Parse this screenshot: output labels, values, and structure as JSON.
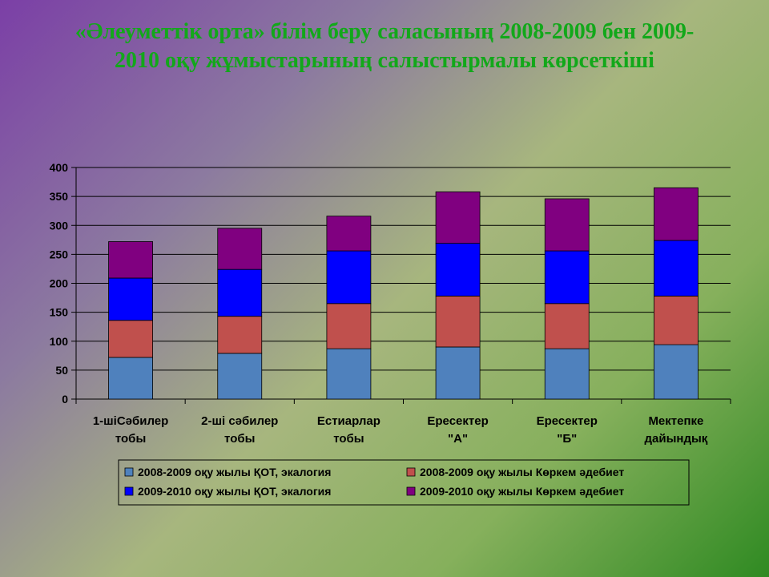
{
  "title_line1": "«Әлеуметтік орта» білім беру саласының 2008-2009 бен 2009-",
  "title_line2": "2010 оқу жұмыстарының салыстырмалы көрсеткіші",
  "chart_data": {
    "type": "bar",
    "stacked": true,
    "title": "«Әлеуметтік орта» білім беру саласының 2008-2009 бен 2009-2010 оқу жұмыстарының салыстырмалы көрсеткіші",
    "categories": [
      [
        "1-шіСәбилер",
        "тобы"
      ],
      [
        "2-ші сәбилер",
        "тобы"
      ],
      [
        "Естиарлар",
        "тобы"
      ],
      [
        "Ересектер",
        "\"А\""
      ],
      [
        "Ересектер",
        "\"Б\""
      ],
      [
        "Мектепке",
        "дайындық"
      ]
    ],
    "series": [
      {
        "name": "2008-2009 оқу жылы ҚОТ, экалогия",
        "color": "#4f81bd",
        "values": [
          72,
          79,
          87,
          90,
          87,
          94
        ]
      },
      {
        "name": "2008-2009 оқу жылы Көркем әдебиет",
        "color": "#c0504d",
        "values": [
          64,
          64,
          78,
          88,
          78,
          84
        ]
      },
      {
        "name": "2009-2010 оқу жылы ҚОТ, экалогия",
        "color": "#0000ff",
        "values": [
          73,
          81,
          91,
          91,
          91,
          96
        ]
      },
      {
        "name": "2009-2010 оқу жылы Көркем әдебиет",
        "color": "#800080",
        "values": [
          63,
          71,
          60,
          89,
          90,
          91
        ]
      }
    ],
    "yticks": [
      0,
      50,
      100,
      150,
      200,
      250,
      300,
      350,
      400
    ],
    "ylim": [
      0,
      400
    ],
    "xlabel": "",
    "ylabel": "",
    "grid": true,
    "legend_position": "bottom"
  }
}
